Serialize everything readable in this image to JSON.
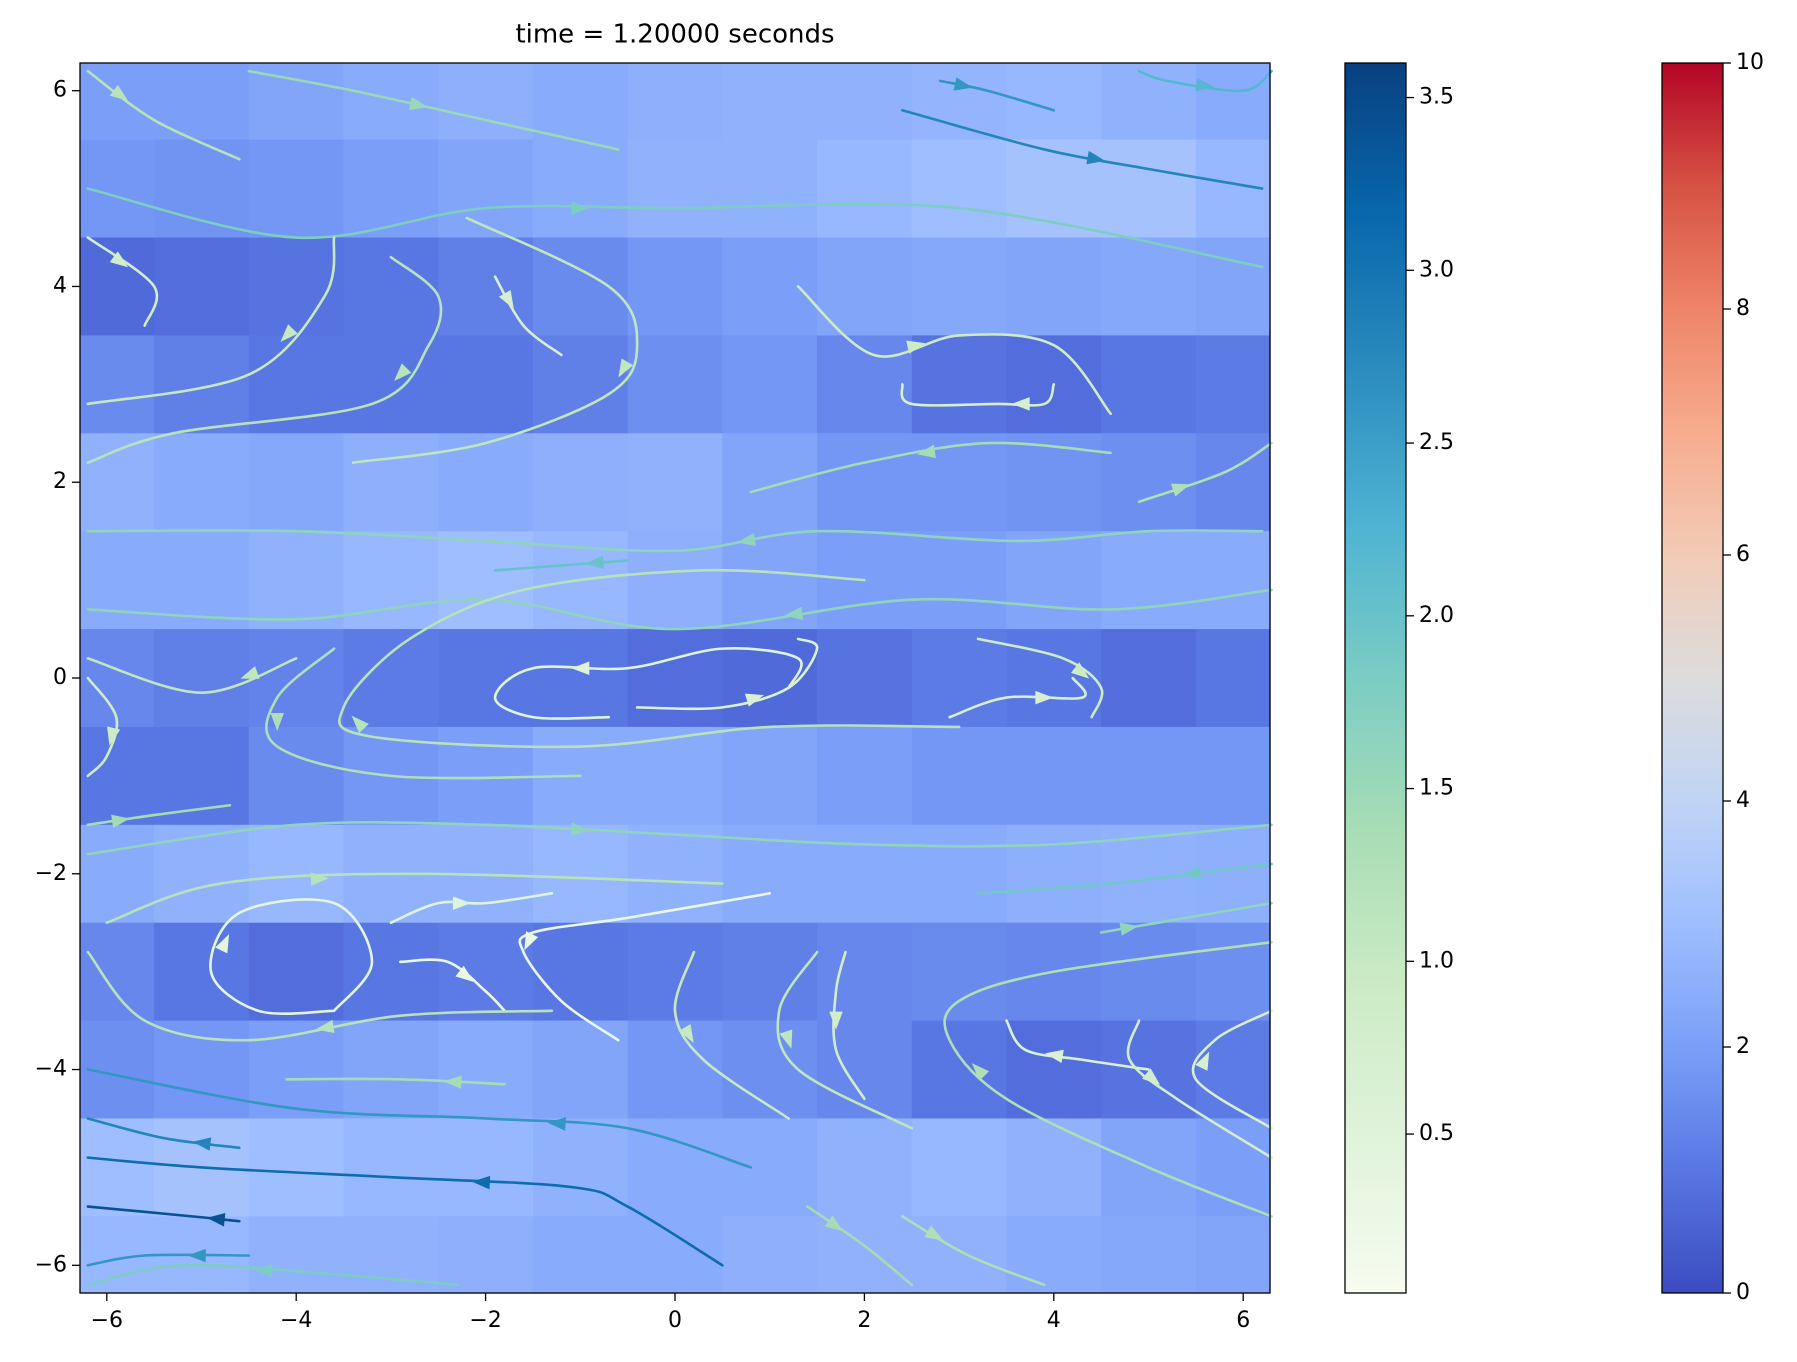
{
  "chart_data": {
    "type": "streamplot",
    "title": "time = 1.20000 seconds",
    "xlim": [
      -6.283,
      6.283
    ],
    "ylim": [
      -6.283,
      6.283
    ],
    "xticks": [
      {
        "value": -6,
        "label": "−6"
      },
      {
        "value": -4,
        "label": "−4"
      },
      {
        "value": -2,
        "label": "−2"
      },
      0,
      2,
      4,
      6
    ],
    "yticks": [
      {
        "value": -6,
        "label": "−6"
      },
      {
        "value": -4,
        "label": "−4"
      },
      {
        "value": -2,
        "label": "−2"
      },
      0,
      2,
      4,
      6
    ],
    "field": {
      "x": [
        -6,
        -5,
        -4,
        -3,
        -2,
        -1,
        0,
        1,
        2,
        3,
        4,
        5,
        6
      ],
      "y": [
        6,
        5,
        4,
        3,
        2,
        1,
        0,
        -1,
        -2,
        -3,
        -4,
        -5,
        -6
      ],
      "z": [
        [
          2.0,
          2.0,
          2.2,
          2.4,
          2.5,
          2.4,
          2.5,
          2.6,
          2.6,
          2.7,
          2.8,
          2.6,
          2.4
        ],
        [
          1.8,
          1.7,
          1.8,
          2.0,
          2.2,
          2.4,
          2.6,
          2.6,
          2.8,
          3.0,
          3.2,
          3.2,
          2.8
        ],
        [
          0.7,
          0.8,
          0.9,
          1.0,
          1.2,
          1.5,
          1.8,
          2.0,
          2.2,
          2.3,
          2.2,
          2.3,
          2.2
        ],
        [
          1.5,
          1.2,
          1.0,
          1.0,
          1.0,
          1.2,
          1.6,
          1.8,
          1.4,
          0.9,
          0.8,
          1.0,
          1.1
        ],
        [
          2.6,
          2.4,
          2.3,
          2.5,
          2.4,
          2.5,
          2.6,
          2.2,
          1.8,
          1.8,
          1.7,
          1.6,
          1.4
        ],
        [
          2.4,
          2.4,
          2.6,
          2.8,
          3.0,
          2.8,
          2.5,
          2.2,
          2.0,
          2.0,
          2.2,
          2.4,
          2.4
        ],
        [
          1.4,
          1.2,
          1.3,
          1.1,
          1.0,
          1.0,
          0.8,
          0.7,
          0.9,
          1.1,
          1.0,
          0.8,
          1.0
        ],
        [
          1.0,
          1.0,
          1.5,
          1.8,
          2.0,
          2.4,
          2.4,
          2.2,
          2.0,
          1.8,
          1.8,
          1.8,
          1.8
        ],
        [
          2.4,
          2.6,
          2.8,
          2.6,
          2.6,
          2.8,
          2.6,
          2.4,
          2.4,
          2.4,
          2.5,
          2.6,
          2.5
        ],
        [
          1.4,
          1.0,
          0.8,
          1.0,
          1.1,
          1.0,
          1.1,
          1.2,
          1.4,
          1.5,
          1.4,
          1.5,
          1.6
        ],
        [
          1.6,
          1.8,
          2.0,
          2.2,
          2.4,
          2.2,
          1.8,
          1.6,
          1.4,
          1.0,
          0.8,
          0.9,
          1.1
        ],
        [
          3.0,
          3.2,
          3.0,
          2.8,
          2.8,
          2.6,
          2.4,
          2.4,
          2.6,
          2.8,
          2.6,
          2.2,
          2.0
        ],
        [
          2.8,
          2.8,
          2.6,
          2.6,
          2.5,
          2.4,
          2.4,
          2.5,
          2.6,
          2.6,
          2.4,
          2.3,
          2.2
        ]
      ]
    },
    "streamlines": [
      {
        "x": [
          -6.2,
          -5.5,
          -4.6
        ],
        "y": [
          6.2,
          5.7,
          5.3
        ],
        "speed": 1.2
      },
      {
        "x": [
          -4.5,
          -3.4,
          -2.0,
          -0.6
        ],
        "y": [
          6.2,
          6.0,
          5.7,
          5.4
        ],
        "speed": 1.5
      },
      {
        "x": [
          2.8,
          3.3,
          4.0
        ],
        "y": [
          6.1,
          6.0,
          5.8
        ],
        "speed": 2.6
      },
      {
        "x": [
          2.4,
          3.9,
          5.0,
          6.2
        ],
        "y": [
          5.8,
          5.4,
          5.2,
          5.0
        ],
        "speed": 2.8
      },
      {
        "x": [
          4.9,
          5.2,
          6.0,
          6.3
        ],
        "y": [
          6.2,
          6.1,
          6.0,
          6.2
        ],
        "speed": 2.2
      },
      {
        "x": [
          -6.2,
          -4.0,
          -2.0,
          0.0,
          3.0,
          6.2
        ],
        "y": [
          5.0,
          4.5,
          4.8,
          4.8,
          4.8,
          4.2
        ],
        "speed": 1.8
      },
      {
        "x": [
          -6.2,
          -5.5,
          -5.6
        ],
        "y": [
          4.5,
          4.0,
          3.6
        ],
        "speed": 0.8
      },
      {
        "x": [
          -3.6,
          -3.7,
          -4.5,
          -6.2
        ],
        "y": [
          4.5,
          3.9,
          3.1,
          2.8
        ],
        "speed": 1.0
      },
      {
        "x": [
          -3.0,
          -2.5,
          -2.6,
          -3.2,
          -5.3,
          -6.2
        ],
        "y": [
          4.3,
          3.9,
          3.4,
          2.8,
          2.5,
          2.2
        ],
        "speed": 1.2
      },
      {
        "x": [
          -2.2,
          -0.7,
          -0.4,
          -0.7,
          -2.0,
          -3.4
        ],
        "y": [
          4.7,
          4.0,
          3.4,
          2.9,
          2.4,
          2.2
        ],
        "speed": 1.1
      },
      {
        "x": [
          -1.9,
          -1.6,
          -1.2
        ],
        "y": [
          4.1,
          3.6,
          3.3
        ],
        "speed": 0.7
      },
      {
        "x": [
          4.6,
          3.3,
          2.0,
          0.8
        ],
        "y": [
          2.3,
          2.4,
          2.2,
          1.9
        ],
        "speed": 1.4
      },
      {
        "x": [
          4.9,
          5.8,
          6.3
        ],
        "y": [
          1.8,
          2.1,
          2.4
        ],
        "speed": 1.3
      },
      {
        "x": [
          4.0,
          3.9,
          3.4,
          2.5,
          2.4
        ],
        "y": [
          3.0,
          2.8,
          2.8,
          2.8,
          3.0
        ],
        "speed": 0.7
      },
      {
        "x": [
          1.3,
          2.1,
          3.0,
          4.0,
          4.6
        ],
        "y": [
          4.0,
          3.3,
          3.5,
          3.4,
          2.7
        ],
        "speed": 0.9
      },
      {
        "x": [
          6.2,
          5.0,
          3.6,
          1.5,
          0.0,
          -2.0,
          -4.0,
          -6.2
        ],
        "y": [
          1.5,
          1.5,
          1.4,
          1.5,
          1.3,
          1.4,
          1.5,
          1.5
        ],
        "speed": 1.6
      },
      {
        "x": [
          6.3,
          4.6,
          2.5,
          0.0,
          -2.0,
          -4.0,
          -6.2
        ],
        "y": [
          0.9,
          0.7,
          0.8,
          0.5,
          0.8,
          0.6,
          0.7
        ],
        "speed": 1.6
      },
      {
        "x": [
          1.2,
          1.3,
          0.5,
          -0.5,
          -1.5,
          -1.9,
          -1.5,
          -0.7
        ],
        "y": [
          -0.1,
          0.2,
          0.3,
          0.1,
          0.1,
          -0.2,
          -0.4,
          -0.4
        ],
        "speed": 0.5
      },
      {
        "x": [
          -0.4,
          0.5,
          1.2,
          1.5,
          1.3
        ],
        "y": [
          -0.3,
          -0.3,
          -0.1,
          0.3,
          0.4
        ],
        "speed": 0.6
      },
      {
        "x": [
          2.9,
          3.5,
          4.3,
          4.2
        ],
        "y": [
          -0.4,
          -0.2,
          -0.2,
          0.0
        ],
        "speed": 0.7
      },
      {
        "x": [
          3.2,
          4.1,
          4.5,
          4.4
        ],
        "y": [
          0.4,
          0.2,
          -0.1,
          -0.4
        ],
        "speed": 0.9
      },
      {
        "x": [
          3.0,
          1.0,
          -1.0,
          -3.2,
          -3.5,
          -2.8,
          -1.6,
          0.3,
          2.0
        ],
        "y": [
          -0.5,
          -0.5,
          -0.7,
          -0.6,
          -0.3,
          0.4,
          0.9,
          1.1,
          1.0
        ],
        "speed": 1.2
      },
      {
        "x": [
          -3.6,
          -4.2,
          -4.2,
          -3.0,
          -1.0
        ],
        "y": [
          0.3,
          -0.2,
          -0.7,
          -1.0,
          -1.0
        ],
        "speed": 1.3
      },
      {
        "x": [
          -6.2,
          -5.9,
          -6.0,
          -6.2
        ],
        "y": [
          0.0,
          -0.4,
          -0.8,
          -1.0
        ],
        "speed": 0.9
      },
      {
        "x": [
          -4.0,
          -5.0,
          -6.2
        ],
        "y": [
          0.2,
          -0.15,
          0.2
        ],
        "speed": 1.1
      },
      {
        "x": [
          -6.2,
          -5.5,
          -4.7
        ],
        "y": [
          -1.5,
          -1.4,
          -1.3
        ],
        "speed": 1.4
      },
      {
        "x": [
          -6.2,
          -4.0,
          -2.0,
          0.0,
          2.0,
          4.0,
          6.3
        ],
        "y": [
          -1.8,
          -1.5,
          -1.5,
          -1.6,
          -1.7,
          -1.7,
          -1.5
        ],
        "speed": 1.6
      },
      {
        "x": [
          6.3,
          4.6,
          3.2
        ],
        "y": [
          -1.9,
          -2.1,
          -2.2
        ],
        "speed": 1.9
      },
      {
        "x": [
          -6.0,
          -4.8,
          -2.7,
          0.5
        ],
        "y": [
          -2.5,
          -2.1,
          -2.0,
          -2.1
        ],
        "speed": 1.2
      },
      {
        "x": [
          1.0,
          -0.5,
          -1.5,
          -1.6,
          -1.2,
          -0.6
        ],
        "y": [
          -2.2,
          -2.45,
          -2.6,
          -2.8,
          -3.3,
          -3.7
        ],
        "speed": 0.3
      },
      {
        "x": [
          -3.6,
          -4.4,
          -4.9,
          -4.6,
          -3.6,
          -3.2,
          -3.6
        ],
        "y": [
          -3.4,
          -3.4,
          -3.0,
          -2.4,
          -2.3,
          -2.9,
          -3.4
        ],
        "speed": 0.4
      },
      {
        "x": [
          -3.0,
          -2.5,
          -2.0,
          -1.3
        ],
        "y": [
          -2.5,
          -2.3,
          -2.3,
          -2.2
        ],
        "speed": 0.5
      },
      {
        "x": [
          -2.9,
          -2.4,
          -2.0,
          -1.8
        ],
        "y": [
          -2.9,
          -2.9,
          -3.2,
          -3.4
        ],
        "speed": 0.3
      },
      {
        "x": [
          -1.3,
          -2.9,
          -4.5,
          -5.6,
          -6.2
        ],
        "y": [
          -3.4,
          -3.45,
          -3.7,
          -3.5,
          -2.8
        ],
        "speed": 1.2
      },
      {
        "x": [
          -1.8,
          -2.9,
          -4.1
        ],
        "y": [
          -4.15,
          -4.1,
          -4.1
        ],
        "speed": 1.4
      },
      {
        "x": [
          0.8,
          -0.5,
          -2.0,
          -4.0,
          -6.2
        ],
        "y": [
          -5.0,
          -4.6,
          -4.5,
          -4.4,
          -4.0
        ],
        "speed": 2.6
      },
      {
        "x": [
          -4.6,
          -5.4,
          -6.2
        ],
        "y": [
          -4.8,
          -4.7,
          -4.5
        ],
        "speed": 2.8
      },
      {
        "x": [
          0.5,
          -0.5,
          -1.1,
          -3.0,
          -5.0,
          -6.2
        ],
        "y": [
          -6.0,
          -5.4,
          -5.2,
          -5.1,
          -5.0,
          -4.9
        ],
        "speed": 3.1
      },
      {
        "x": [
          -4.6,
          -5.1,
          -6.2
        ],
        "y": [
          -5.55,
          -5.5,
          -5.4
        ],
        "speed": 3.4
      },
      {
        "x": [
          -4.5,
          -5.6,
          -6.2
        ],
        "y": [
          -5.9,
          -5.9,
          -6.0
        ],
        "speed": 2.6
      },
      {
        "x": [
          -2.3,
          -3.5,
          -5.2,
          -6.2
        ],
        "y": [
          -6.2,
          -6.1,
          -6.0,
          -6.2
        ],
        "speed": 1.8
      },
      {
        "x": [
          0.2,
          0.0,
          0.3,
          1.2
        ],
        "y": [
          -2.8,
          -3.4,
          -3.9,
          -4.5
        ],
        "speed": 1.0
      },
      {
        "x": [
          1.5,
          1.1,
          1.3,
          2.5
        ],
        "y": [
          -2.8,
          -3.4,
          -4.0,
          -4.6
        ],
        "speed": 1.1
      },
      {
        "x": [
          1.8,
          1.7,
          1.7,
          2.0
        ],
        "y": [
          -2.8,
          -3.2,
          -3.8,
          -4.3
        ],
        "speed": 0.8
      },
      {
        "x": [
          6.3,
          5.0,
          3.5,
          2.9,
          3.0,
          4.0,
          6.3
        ],
        "y": [
          -5.5,
          -5.0,
          -4.3,
          -3.7,
          -3.3,
          -3.0,
          -2.7
        ],
        "speed": 1.3
      },
      {
        "x": [
          5.0,
          4.3,
          3.7,
          3.5
        ],
        "y": [
          -4.0,
          -3.9,
          -3.8,
          -3.5
        ],
        "speed": 0.6
      },
      {
        "x": [
          4.9,
          4.8,
          5.3,
          6.3
        ],
        "y": [
          -3.5,
          -3.9,
          -4.3,
          -4.9
        ],
        "speed": 0.8
      },
      {
        "x": [
          6.3,
          5.5,
          5.7,
          6.3
        ],
        "y": [
          -4.6,
          -4.1,
          -3.7,
          -3.4
        ],
        "speed": 0.7
      },
      {
        "x": [
          1.4,
          2.0,
          2.5
        ],
        "y": [
          -5.4,
          -5.8,
          -6.2
        ],
        "speed": 1.4
      },
      {
        "x": [
          2.4,
          3.1,
          3.9
        ],
        "y": [
          -5.5,
          -5.9,
          -6.2
        ],
        "speed": 1.3
      },
      {
        "x": [
          4.5,
          5.1,
          6.3
        ],
        "y": [
          -2.6,
          -2.5,
          -2.3
        ],
        "speed": 1.6
      },
      {
        "x": [
          -0.5,
          -1.2,
          -1.9
        ],
        "y": [
          1.2,
          1.15,
          1.1
        ],
        "speed": 2.0
      }
    ],
    "colorbars": [
      {
        "lim": [
          0.04,
          3.6
        ],
        "ticks": [
          0.5,
          {
            "value": 1,
            "label": "1.0"
          },
          1.5,
          {
            "value": 2,
            "label": "2.0"
          },
          2.5,
          {
            "value": 3,
            "label": "3.0"
          },
          3.5
        ],
        "colors": [
          "#f7fcf0",
          "#e0f3db",
          "#ccebc5",
          "#a8ddb5",
          "#7bccc4",
          "#4eb3d3",
          "#2b8cbe",
          "#0868ac",
          "#084081"
        ]
      },
      {
        "lim": [
          0,
          10
        ],
        "ticks": [
          0,
          2,
          4,
          6,
          8,
          10
        ],
        "colors": [
          "#3b4cc0",
          "#5977e3",
          "#7b9ff9",
          "#9ebeff",
          "#c0d4f5",
          "#dddcdc",
          "#f2cbb7",
          "#f7ac8e",
          "#ee8468",
          "#d65244",
          "#b40426"
        ]
      }
    ]
  }
}
